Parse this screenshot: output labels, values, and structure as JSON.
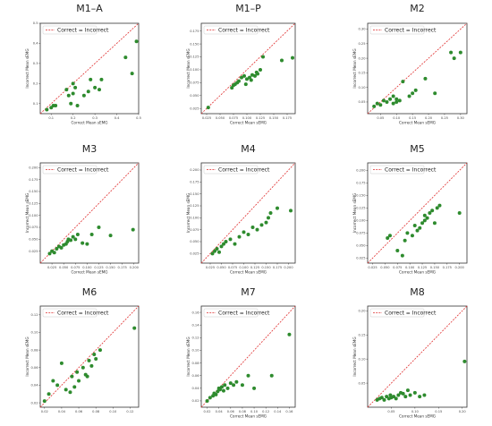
{
  "figure": {
    "colors": {
      "marker": "#2e8b2e",
      "identity_line": "#e03030",
      "frame": "#333333"
    }
  },
  "chart_data": [
    {
      "type": "scatter",
      "title": "M1–A",
      "xlabel": "Correct Mean sEMG",
      "ylabel": "Incorrect Mean sEMG",
      "legend": {
        "label": "Correct = Incorrect",
        "position": "top-left"
      },
      "xlim": [
        0.05,
        0.5
      ],
      "ylim": [
        0.05,
        0.5
      ],
      "xticks": [
        "0.1",
        "0.2",
        "0.3",
        "0.4",
        "0.5"
      ],
      "yticks": [
        "0.1",
        "0.2",
        "0.3",
        "0.4",
        "0.5"
      ],
      "tick_values": [
        0.1,
        0.2,
        0.3,
        0.4,
        0.5
      ],
      "x": [
        0.08,
        0.1,
        0.11,
        0.12,
        0.17,
        0.18,
        0.19,
        0.2,
        0.2,
        0.21,
        0.22,
        0.25,
        0.27,
        0.28,
        0.3,
        0.32,
        0.33,
        0.44,
        0.47,
        0.49
      ],
      "y": [
        0.07,
        0.08,
        0.09,
        0.09,
        0.17,
        0.14,
        0.1,
        0.15,
        0.2,
        0.18,
        0.09,
        0.14,
        0.16,
        0.22,
        0.18,
        0.17,
        0.22,
        0.33,
        0.25,
        0.41
      ]
    },
    {
      "type": "scatter",
      "title": "M1–P",
      "xlabel": "Correct Mean sEMG",
      "ylabel": "Incorrect Mean sEMG",
      "legend": {
        "label": "Correct = Incorrect",
        "position": "top-left"
      },
      "xlim": [
        0.015,
        0.19
      ],
      "ylim": [
        0.015,
        0.19
      ],
      "xticks": [
        "0.025",
        "0.050",
        "0.075",
        "0.100",
        "0.125",
        "0.150",
        "0.175"
      ],
      "yticks": [
        "0.025",
        "0.050",
        "0.075",
        "0.100",
        "0.125",
        "0.150",
        "0.175"
      ],
      "tick_values": [
        0.025,
        0.05,
        0.075,
        0.1,
        0.125,
        0.15,
        0.175
      ],
      "x": [
        0.028,
        0.072,
        0.075,
        0.078,
        0.082,
        0.085,
        0.09,
        0.095,
        0.098,
        0.1,
        0.105,
        0.108,
        0.11,
        0.115,
        0.118,
        0.12,
        0.125,
        0.13,
        0.165,
        0.185
      ],
      "y": [
        0.027,
        0.065,
        0.07,
        0.072,
        0.075,
        0.078,
        0.085,
        0.088,
        0.072,
        0.082,
        0.085,
        0.08,
        0.09,
        0.088,
        0.095,
        0.092,
        0.1,
        0.125,
        0.118,
        0.123
      ]
    },
    {
      "type": "scatter",
      "title": "M2",
      "xlabel": "Correct Mean sEMG",
      "ylabel": "Incorrect Mean sEMG",
      "legend": {
        "label": "Correct = Incorrect",
        "position": "top-left"
      },
      "xlim": [
        0.01,
        0.32
      ],
      "ylim": [
        0.01,
        0.32
      ],
      "xticks": [
        "0.05",
        "0.10",
        "0.15",
        "0.20",
        "0.25",
        "0.30"
      ],
      "yticks": [
        "0.05",
        "0.10",
        "0.15",
        "0.20",
        "0.25",
        "0.30"
      ],
      "tick_values": [
        0.05,
        0.1,
        0.15,
        0.2,
        0.25,
        0.3
      ],
      "x": [
        0.03,
        0.04,
        0.05,
        0.06,
        0.07,
        0.08,
        0.09,
        0.09,
        0.1,
        0.1,
        0.11,
        0.12,
        0.14,
        0.15,
        0.16,
        0.19,
        0.22,
        0.27,
        0.28,
        0.3
      ],
      "y": [
        0.035,
        0.045,
        0.04,
        0.055,
        0.05,
        0.06,
        0.045,
        0.07,
        0.05,
        0.06,
        0.055,
        0.12,
        0.07,
        0.08,
        0.09,
        0.13,
        0.08,
        0.22,
        0.2,
        0.22
      ]
    },
    {
      "type": "scatter",
      "title": "M3",
      "xlabel": "Correct Mean sEMG",
      "ylabel": "Incorrect Mean sEMG",
      "legend": {
        "label": "Correct = Incorrect",
        "position": "top-left"
      },
      "xlim": [
        0.0,
        0.21
      ],
      "ylim": [
        0.0,
        0.21
      ],
      "xticks": [
        "0.025",
        "0.050",
        "0.075",
        "0.100",
        "0.125",
        "0.150",
        "0.175",
        "0.200"
      ],
      "yticks": [
        "0.025",
        "0.050",
        "0.075",
        "0.100",
        "0.125",
        "0.150",
        "0.175",
        "0.200"
      ],
      "tick_values": [
        0.025,
        0.05,
        0.075,
        0.1,
        0.125,
        0.15,
        0.175,
        0.2
      ],
      "x": [
        0.02,
        0.025,
        0.03,
        0.035,
        0.04,
        0.045,
        0.05,
        0.055,
        0.058,
        0.06,
        0.065,
        0.07,
        0.075,
        0.08,
        0.09,
        0.1,
        0.11,
        0.125,
        0.15,
        0.198
      ],
      "y": [
        0.02,
        0.025,
        0.022,
        0.03,
        0.035,
        0.032,
        0.038,
        0.04,
        0.045,
        0.05,
        0.048,
        0.055,
        0.05,
        0.06,
        0.042,
        0.04,
        0.06,
        0.075,
        0.058,
        0.07
      ]
    },
    {
      "type": "scatter",
      "title": "M4",
      "xlabel": "Correct Mean sEMG",
      "ylabel": "Incorrect Mean sEMG",
      "legend": {
        "label": "Correct = Incorrect",
        "position": "top-left"
      },
      "xlim": [
        0.005,
        0.215
      ],
      "ylim": [
        0.005,
        0.215
      ],
      "xticks": [
        "0.025",
        "0.050",
        "0.075",
        "0.100",
        "0.125",
        "0.150",
        "0.175",
        "0.200"
      ],
      "yticks": [
        "0.025",
        "0.050",
        "0.075",
        "0.100",
        "0.125",
        "0.150",
        "0.175",
        "0.200"
      ],
      "tick_values": [
        0.025,
        0.05,
        0.075,
        0.1,
        0.125,
        0.15,
        0.175,
        0.2
      ],
      "x": [
        0.03,
        0.035,
        0.04,
        0.045,
        0.05,
        0.055,
        0.06,
        0.07,
        0.08,
        0.09,
        0.1,
        0.11,
        0.12,
        0.13,
        0.14,
        0.15,
        0.155,
        0.16,
        0.175,
        0.205
      ],
      "y": [
        0.025,
        0.03,
        0.035,
        0.028,
        0.04,
        0.045,
        0.05,
        0.055,
        0.045,
        0.06,
        0.07,
        0.065,
        0.08,
        0.075,
        0.085,
        0.09,
        0.1,
        0.11,
        0.12,
        0.115
      ]
    },
    {
      "type": "scatter",
      "title": "M5",
      "xlabel": "Correct Mean sEMG",
      "ylabel": "Incorrect Mean sEMG",
      "legend": {
        "label": "Correct = Incorrect",
        "position": "top-left"
      },
      "xlim": [
        0.015,
        0.215
      ],
      "ylim": [
        0.015,
        0.215
      ],
      "xticks": [
        "0.025",
        "0.050",
        "0.075",
        "0.100",
        "0.125",
        "0.150",
        "0.175",
        "0.200"
      ],
      "yticks": [
        "0.025",
        "0.050",
        "0.075",
        "0.100",
        "0.125",
        "0.150",
        "0.175",
        "0.200"
      ],
      "tick_values": [
        0.025,
        0.05,
        0.075,
        0.1,
        0.125,
        0.15,
        0.175,
        0.2
      ],
      "x": [
        0.055,
        0.06,
        0.075,
        0.085,
        0.09,
        0.095,
        0.105,
        0.11,
        0.115,
        0.12,
        0.125,
        0.13,
        0.13,
        0.135,
        0.14,
        0.145,
        0.15,
        0.155,
        0.16,
        0.2
      ],
      "y": [
        0.065,
        0.07,
        0.04,
        0.03,
        0.06,
        0.075,
        0.07,
        0.09,
        0.08,
        0.085,
        0.095,
        0.11,
        0.1,
        0.105,
        0.115,
        0.12,
        0.095,
        0.125,
        0.13,
        0.115
      ]
    },
    {
      "type": "scatter",
      "title": "M6",
      "xlabel": "",
      "ylabel": "Incorrect Mean sEMG",
      "legend": {
        "label": "Correct = Incorrect",
        "position": "top-left"
      },
      "xlim": [
        0.015,
        0.13
      ],
      "ylim": [
        0.015,
        0.13
      ],
      "xticks": [
        "0.02",
        "0.04",
        "0.06",
        "0.08",
        "0.10",
        "0.12"
      ],
      "yticks": [
        "0.02",
        "0.04",
        "0.06",
        "0.08",
        "0.10",
        "0.12"
      ],
      "tick_values": [
        0.02,
        0.04,
        0.06,
        0.08,
        0.1,
        0.12
      ],
      "x": [
        0.02,
        0.025,
        0.03,
        0.035,
        0.04,
        0.045,
        0.05,
        0.052,
        0.055,
        0.058,
        0.06,
        0.065,
        0.068,
        0.07,
        0.072,
        0.075,
        0.078,
        0.08,
        0.085,
        0.125
      ],
      "y": [
        0.022,
        0.03,
        0.045,
        0.04,
        0.065,
        0.035,
        0.032,
        0.05,
        0.038,
        0.055,
        0.045,
        0.06,
        0.052,
        0.05,
        0.068,
        0.062,
        0.075,
        0.07,
        0.08,
        0.105
      ]
    },
    {
      "type": "scatter",
      "title": "M7",
      "xlabel": "Correct Mean sEMG",
      "ylabel": "Incorrect Mean sEMG",
      "legend": {
        "label": "Correct = Incorrect",
        "position": "top-left"
      },
      "xlim": [
        0.01,
        0.17
      ],
      "ylim": [
        0.01,
        0.17
      ],
      "xticks": [
        "0.02",
        "0.04",
        "0.06",
        "0.08",
        "0.10",
        "0.12",
        "0.14",
        "0.16"
      ],
      "yticks": [
        "0.02",
        "0.04",
        "0.06",
        "0.08",
        "0.10",
        "0.12",
        "0.14",
        "0.16"
      ],
      "tick_values": [
        0.02,
        0.04,
        0.06,
        0.08,
        0.1,
        0.12,
        0.14,
        0.16
      ],
      "x": [
        0.02,
        0.025,
        0.03,
        0.032,
        0.035,
        0.038,
        0.04,
        0.042,
        0.045,
        0.048,
        0.05,
        0.055,
        0.06,
        0.065,
        0.07,
        0.08,
        0.09,
        0.1,
        0.13,
        0.16
      ],
      "y": [
        0.02,
        0.025,
        0.028,
        0.032,
        0.03,
        0.035,
        0.04,
        0.038,
        0.042,
        0.036,
        0.045,
        0.04,
        0.048,
        0.045,
        0.05,
        0.045,
        0.06,
        0.04,
        0.06,
        0.125
      ]
    },
    {
      "type": "scatter",
      "title": "M8",
      "xlabel": "Correct Mean sEMG",
      "ylabel": "Incorrect Mean sEMG",
      "legend": {
        "label": "Correct = Incorrect",
        "position": "top-left"
      },
      "xlim": [
        0.0,
        0.21
      ],
      "ylim": [
        0.0,
        0.21
      ],
      "xticks": [
        "0.05",
        "0.10",
        "0.15",
        "0.20"
      ],
      "yticks": [
        "0.05",
        "0.10",
        "0.15",
        "0.20"
      ],
      "tick_values": [
        0.05,
        0.1,
        0.15,
        0.2
      ],
      "x": [
        0.02,
        0.025,
        0.03,
        0.035,
        0.04,
        0.045,
        0.048,
        0.05,
        0.055,
        0.06,
        0.065,
        0.07,
        0.075,
        0.08,
        0.085,
        0.09,
        0.1,
        0.11,
        0.12,
        0.205
      ],
      "y": [
        0.015,
        0.018,
        0.02,
        0.015,
        0.022,
        0.018,
        0.025,
        0.02,
        0.022,
        0.018,
        0.025,
        0.03,
        0.028,
        0.022,
        0.035,
        0.025,
        0.03,
        0.022,
        0.025,
        0.095
      ]
    }
  ]
}
